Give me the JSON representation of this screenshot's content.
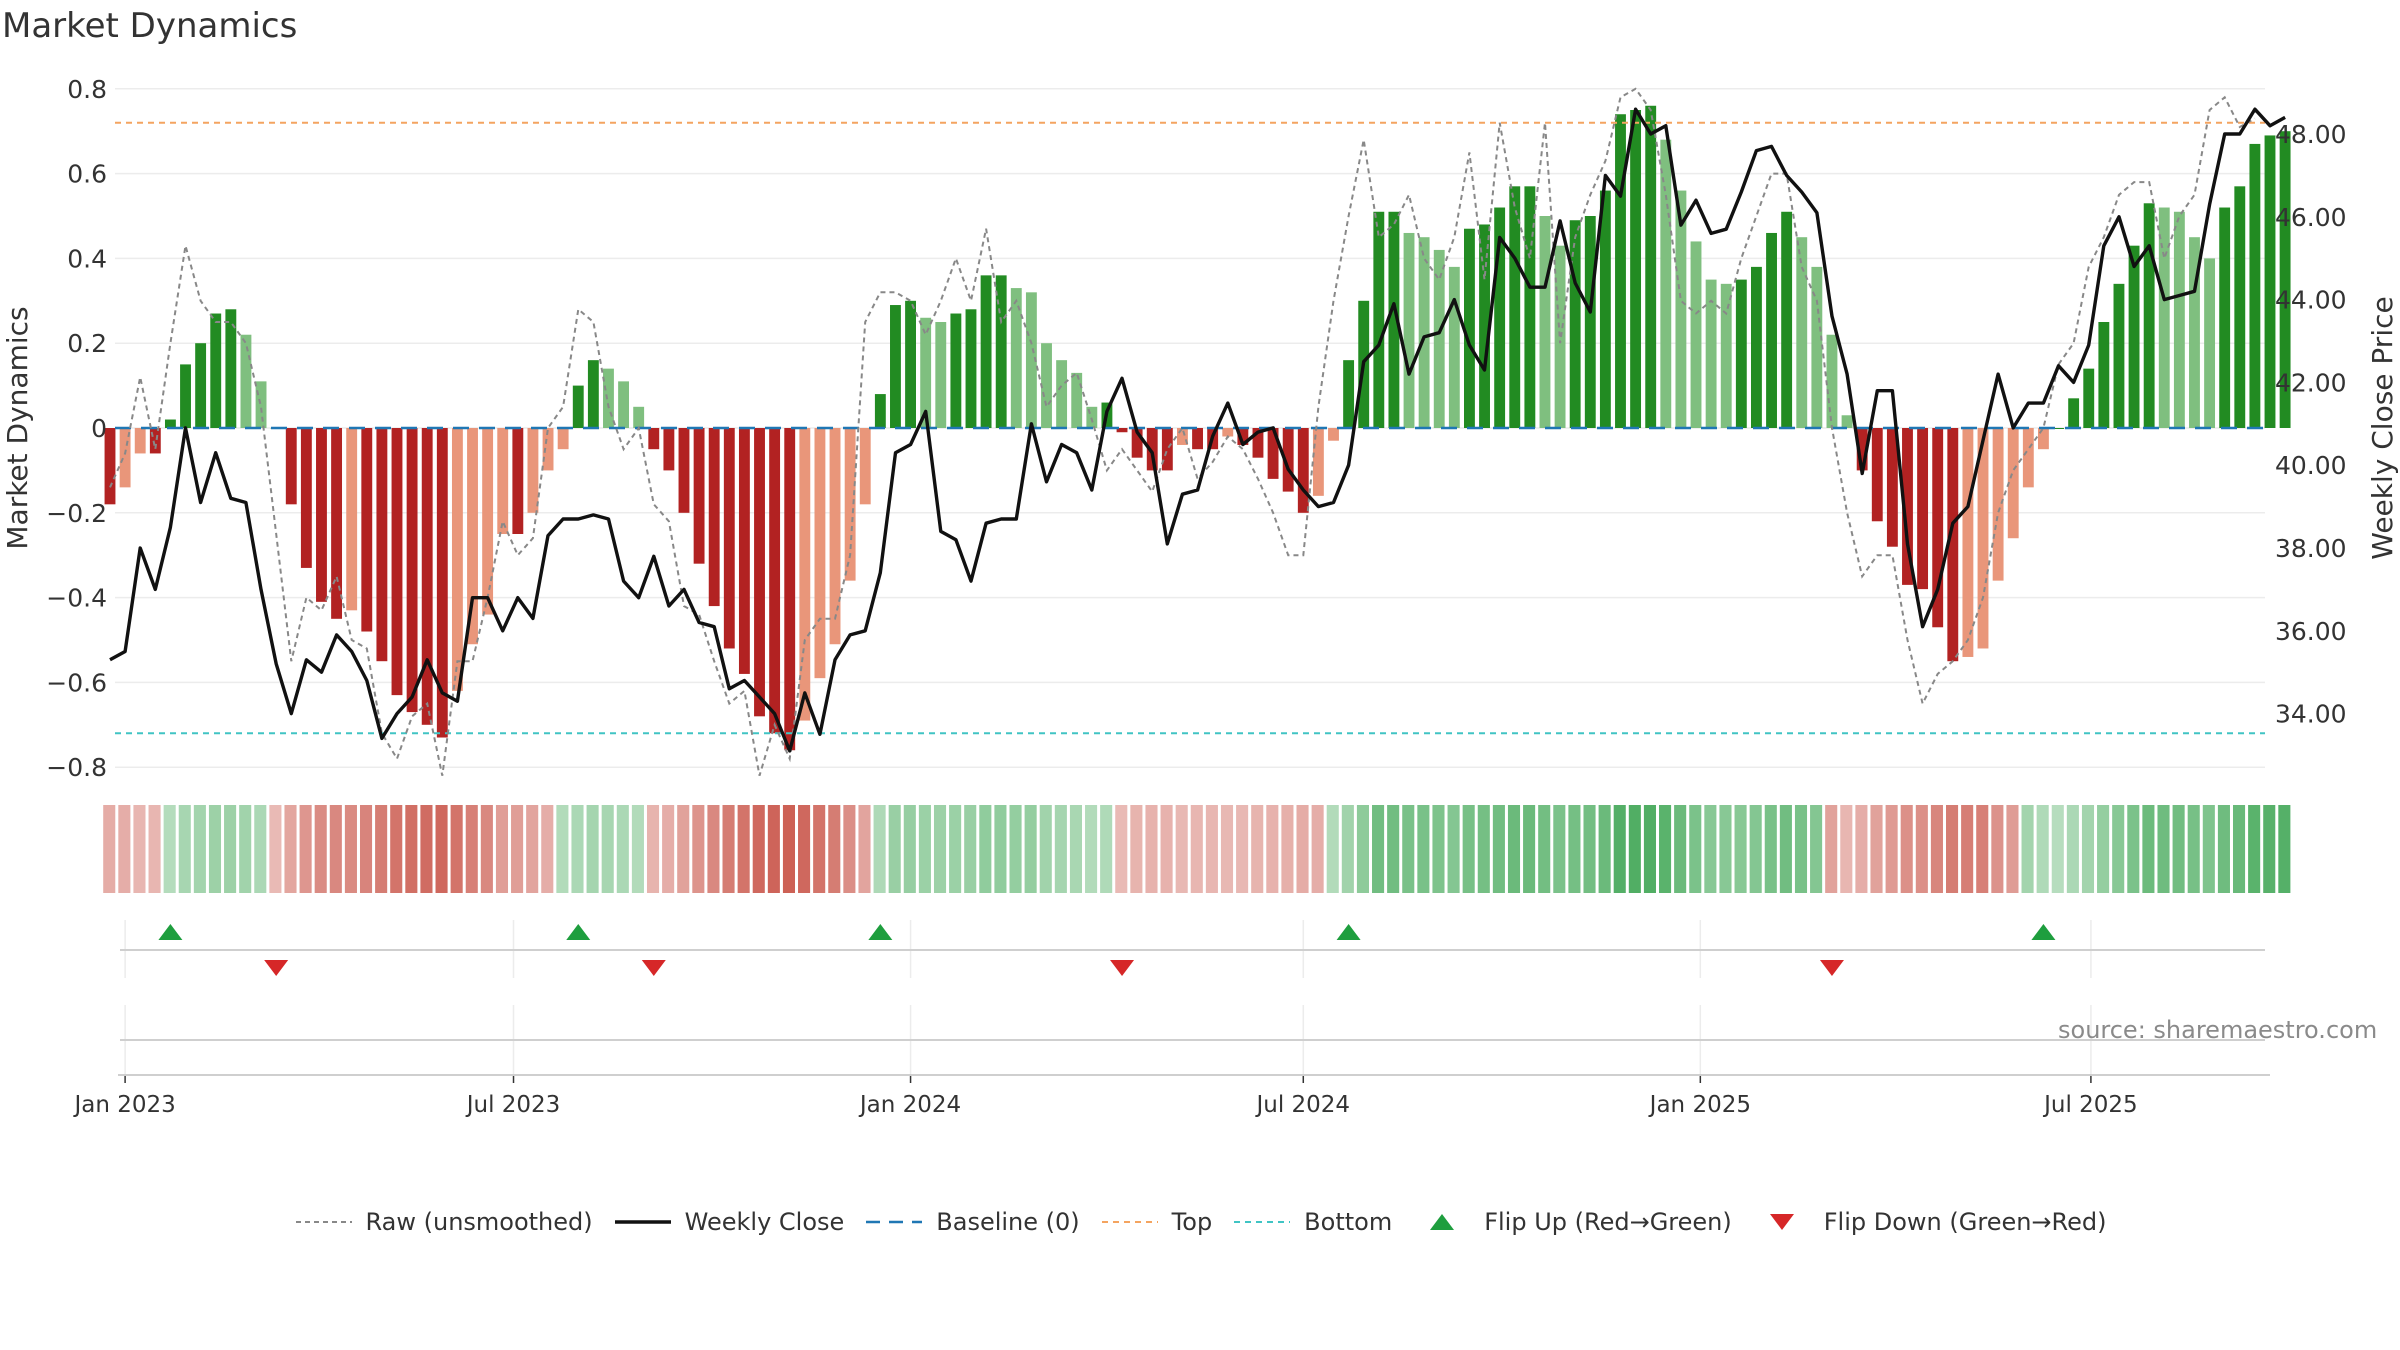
{
  "title": "Market Dynamics",
  "source_text": "source: sharemaestro.com",
  "colors": {
    "strong_green": "#228b22",
    "light_green": "#7fbf7f",
    "strong_red": "#b22222",
    "light_red": "#e9967a",
    "close_line": "#111111",
    "raw_line": "#888888",
    "baseline": "#1f77b4",
    "top": "#f4a460",
    "bottom": "#40c4c4",
    "flip_up": "#1e9e3e",
    "flip_down": "#d62728"
  },
  "legend": [
    {
      "key": "raw",
      "label": "Raw (unsmoothed)"
    },
    {
      "key": "close",
      "label": "Weekly Close"
    },
    {
      "key": "baseline",
      "label": "Baseline (0)"
    },
    {
      "key": "top",
      "label": "Top"
    },
    {
      "key": "bottom",
      "label": "Bottom"
    },
    {
      "key": "flip_up",
      "label": "Flip Up (Red→Green)"
    },
    {
      "key": "flip_down",
      "label": "Flip Down (Green→Red)"
    }
  ],
  "chart_data": {
    "type": "bar",
    "title": "Market Dynamics",
    "ylabel_left": "Market Dynamics",
    "ylabel_right": "Weekly Close Price",
    "ylim_left": [
      -0.85,
      0.8
    ],
    "yticks_left": [
      "−0.8",
      "−0.6",
      "−0.4",
      "−0.2",
      "0",
      "0.2",
      "0.4",
      "0.6",
      "0.8"
    ],
    "yticks_left_values": [
      -0.8,
      -0.6,
      -0.4,
      -0.2,
      0,
      0.2,
      0.4,
      0.6,
      0.8
    ],
    "ylim_right": [
      31.4,
      49.5
    ],
    "yticks_right": [
      "34.00",
      "36.00",
      "38.00",
      "40.00",
      "42.00",
      "44.00",
      "46.00",
      "48.00"
    ],
    "yticks_right_values": [
      34,
      36,
      38,
      40,
      42,
      44,
      46,
      48
    ],
    "xlim": [
      "2022-12-26",
      "2025-09-22"
    ],
    "xticks": [
      {
        "date": "2023-01-02",
        "label": "Jan 2023"
      },
      {
        "date": "2023-07-01",
        "label": "Jul 2023"
      },
      {
        "date": "2024-01-01",
        "label": "Jan 2024"
      },
      {
        "date": "2024-07-01",
        "label": "Jul 2024"
      },
      {
        "date": "2025-01-01",
        "label": "Jan 2025"
      },
      {
        "date": "2025-07-01",
        "label": "Jul 2025"
      }
    ],
    "start_date": "2022-12-26",
    "top_threshold": 0.72,
    "bottom_threshold": -0.72,
    "baseline": 0,
    "grid": true,
    "legend_placement": "bottom-center",
    "dynamics": [
      -0.18,
      -0.14,
      -0.06,
      -0.06,
      0.02,
      0.15,
      0.2,
      0.27,
      0.28,
      0.22,
      0.11,
      0.0,
      -0.18,
      -0.33,
      -0.41,
      -0.45,
      -0.43,
      -0.48,
      -0.55,
      -0.63,
      -0.67,
      -0.7,
      -0.73,
      -0.62,
      -0.51,
      -0.44,
      -0.25,
      -0.25,
      -0.2,
      -0.1,
      -0.05,
      0.1,
      0.16,
      0.14,
      0.11,
      0.05,
      -0.05,
      -0.1,
      -0.2,
      -0.32,
      -0.42,
      -0.52,
      -0.58,
      -0.68,
      -0.72,
      -0.76,
      -0.69,
      -0.59,
      -0.51,
      -0.36,
      -0.18,
      0.08,
      0.29,
      0.3,
      0.26,
      0.25,
      0.27,
      0.28,
      0.36,
      0.36,
      0.33,
      0.32,
      0.2,
      0.16,
      0.13,
      0.05,
      0.06,
      -0.01,
      -0.07,
      -0.1,
      -0.1,
      -0.04,
      -0.05,
      -0.05,
      -0.02,
      -0.04,
      -0.07,
      -0.12,
      -0.15,
      -0.2,
      -0.16,
      -0.03,
      0.16,
      0.3,
      0.51,
      0.51,
      0.46,
      0.45,
      0.42,
      0.38,
      0.47,
      0.48,
      0.52,
      0.57,
      0.57,
      0.5,
      0.43,
      0.49,
      0.5,
      0.56,
      0.74,
      0.75,
      0.76,
      0.68,
      0.56,
      0.44,
      0.35,
      0.34,
      0.35,
      0.38,
      0.46,
      0.51,
      0.45,
      0.38,
      0.22,
      0.03,
      -0.1,
      -0.22,
      -0.28,
      -0.37,
      -0.38,
      -0.47,
      -0.55,
      -0.54,
      -0.52,
      -0.36,
      -0.26,
      -0.14,
      -0.05,
      0.0,
      0.07,
      0.14,
      0.25,
      0.34,
      0.43,
      0.53,
      0.52,
      0.51,
      0.45,
      0.4,
      0.52,
      0.57,
      0.67,
      0.69,
      0.7
    ],
    "raw": [
      -0.14,
      -0.06,
      0.12,
      -0.05,
      0.2,
      0.43,
      0.3,
      0.25,
      0.25,
      0.2,
      0.05,
      -0.25,
      -0.55,
      -0.4,
      -0.43,
      -0.35,
      -0.5,
      -0.52,
      -0.72,
      -0.78,
      -0.68,
      -0.65,
      -0.82,
      -0.55,
      -0.55,
      -0.4,
      -0.22,
      -0.3,
      -0.26,
      0.0,
      0.05,
      0.28,
      0.25,
      0.05,
      -0.05,
      0.0,
      -0.18,
      -0.22,
      -0.42,
      -0.44,
      -0.55,
      -0.65,
      -0.62,
      -0.82,
      -0.7,
      -0.78,
      -0.5,
      -0.45,
      -0.45,
      -0.3,
      0.25,
      0.32,
      0.32,
      0.3,
      0.22,
      0.3,
      0.4,
      0.3,
      0.47,
      0.25,
      0.3,
      0.2,
      0.05,
      0.1,
      0.13,
      0.02,
      -0.1,
      -0.05,
      -0.1,
      -0.15,
      -0.05,
      0.0,
      -0.12,
      -0.08,
      -0.02,
      -0.05,
      -0.12,
      -0.2,
      -0.3,
      -0.3,
      0.05,
      0.3,
      0.5,
      0.68,
      0.45,
      0.48,
      0.55,
      0.4,
      0.35,
      0.45,
      0.65,
      0.35,
      0.72,
      0.52,
      0.4,
      0.72,
      0.2,
      0.45,
      0.55,
      0.63,
      0.78,
      0.8,
      0.75,
      0.55,
      0.3,
      0.27,
      0.3,
      0.27,
      0.4,
      0.5,
      0.6,
      0.6,
      0.38,
      0.3,
      0.0,
      -0.2,
      -0.35,
      -0.3,
      -0.3,
      -0.5,
      -0.65,
      -0.58,
      -0.55,
      -0.5,
      -0.4,
      -0.2,
      -0.1,
      -0.05,
      0.0,
      0.15,
      0.2,
      0.38,
      0.45,
      0.55,
      0.58,
      0.58,
      0.4,
      0.5,
      0.55,
      0.75,
      0.78,
      0.71,
      0.73
    ],
    "weekly_close": [
      35.3,
      35.5,
      38.0,
      37.0,
      38.5,
      40.9,
      39.1,
      40.3,
      39.2,
      39.1,
      37.0,
      35.2,
      34.0,
      35.3,
      35.0,
      35.9,
      35.5,
      34.8,
      33.4,
      34.0,
      34.4,
      35.3,
      34.5,
      34.3,
      36.8,
      36.8,
      36.0,
      36.8,
      36.3,
      38.3,
      38.7,
      38.7,
      38.8,
      38.7,
      37.2,
      36.8,
      37.8,
      36.6,
      37.0,
      36.2,
      36.1,
      34.6,
      34.8,
      34.4,
      34.0,
      33.1,
      34.5,
      33.5,
      35.3,
      35.9,
      36.0,
      37.4,
      40.3,
      40.5,
      41.3,
      38.4,
      38.2,
      37.2,
      38.6,
      38.7,
      38.7,
      41.0,
      39.6,
      40.5,
      40.3,
      39.4,
      41.3,
      42.1,
      40.8,
      40.3,
      38.1,
      39.3,
      39.4,
      40.7,
      41.5,
      40.5,
      40.8,
      40.9,
      39.9,
      39.4,
      39.0,
      39.1,
      40.0,
      42.5,
      42.9,
      43.9,
      42.2,
      43.1,
      43.2,
      44.0,
      42.9,
      42.3,
      45.5,
      45.0,
      44.3,
      44.3,
      45.9,
      44.4,
      43.7,
      47.0,
      46.5,
      48.6,
      48.0,
      48.2,
      45.8,
      46.4,
      45.6,
      45.7,
      46.6,
      47.6,
      47.7,
      47.0,
      46.6,
      46.1,
      43.6,
      42.2,
      39.8,
      41.8,
      41.8,
      38.1,
      36.1,
      37.0,
      38.6,
      39.0,
      40.6,
      42.2,
      40.9,
      41.5,
      41.5,
      42.4,
      42.0,
      42.9,
      45.3,
      46.0,
      44.8,
      45.3,
      44.0,
      44.1,
      44.2,
      46.3,
      48.0,
      48.0,
      48.6,
      48.2,
      48.4
    ],
    "regime_bands": [
      {
        "start": 0,
        "end": 4,
        "kind": "red",
        "shade": 0.5
      },
      {
        "start": 4,
        "end": 11,
        "kind": "green",
        "shade": 0.55
      },
      {
        "start": 11,
        "end": 30,
        "kind": "red",
        "shade": 0.7
      },
      {
        "start": 30,
        "end": 36,
        "kind": "green",
        "shade": 0.6
      },
      {
        "start": 36,
        "end": 51,
        "kind": "red",
        "shade": 0.75
      },
      {
        "start": 51,
        "end": 67,
        "kind": "green",
        "shade": 0.62
      },
      {
        "start": 67,
        "end": 81,
        "kind": "red",
        "shade": 0.45
      },
      {
        "start": 81,
        "end": 114,
        "kind": "green",
        "shade": 0.8
      },
      {
        "start": 114,
        "end": 127,
        "kind": "red",
        "shade": 0.7
      },
      {
        "start": 127,
        "end": 145,
        "kind": "green",
        "shade": 0.82
      }
    ],
    "flip_up_weeks": [
      4,
      31,
      51,
      82,
      128
    ],
    "flip_down_weeks": [
      11,
      36,
      67,
      114
    ]
  }
}
